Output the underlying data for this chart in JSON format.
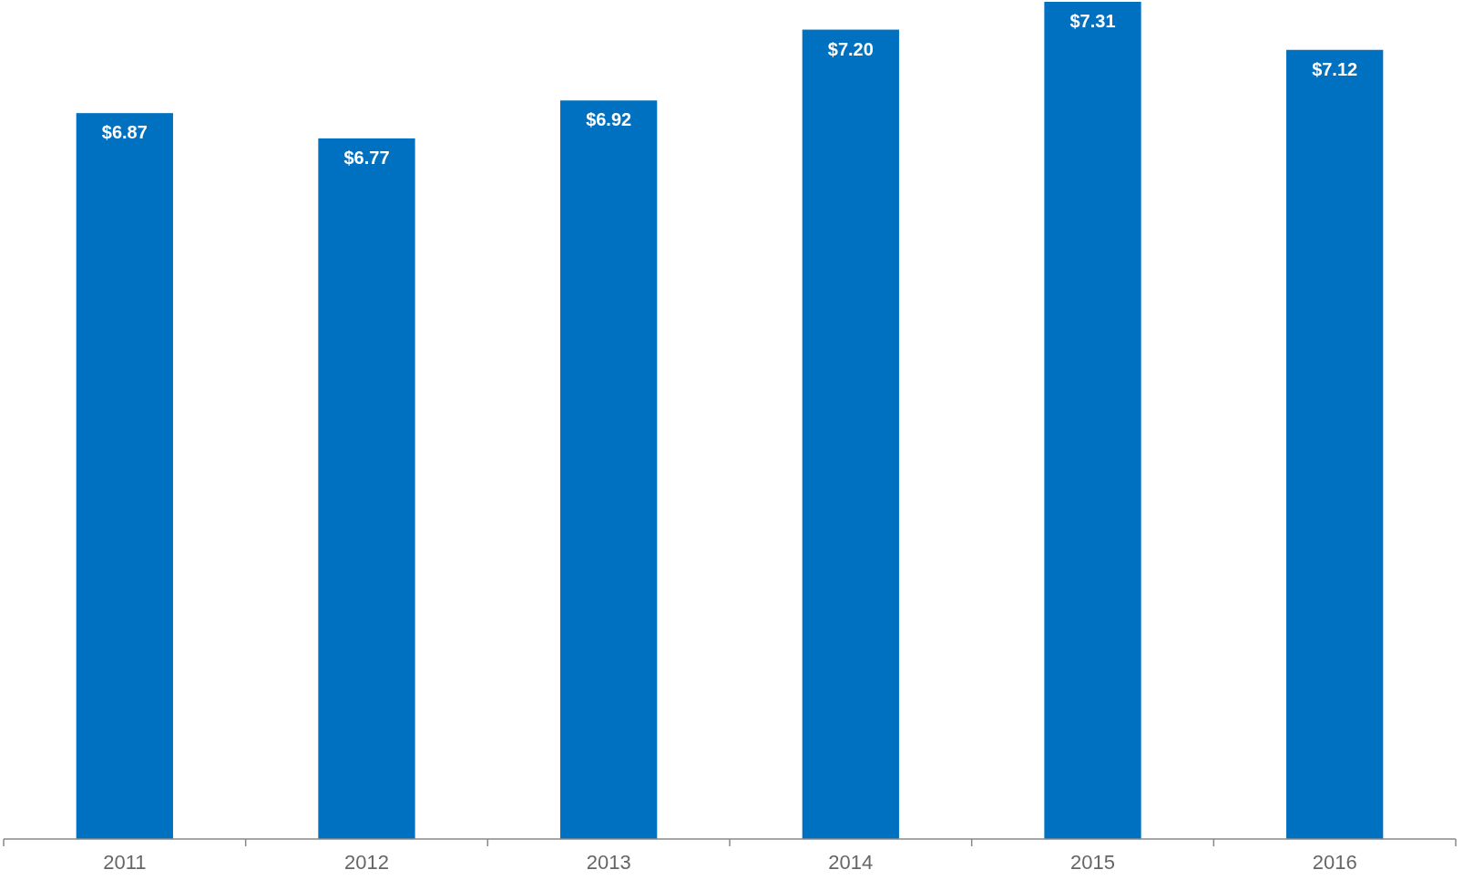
{
  "chart_data": {
    "type": "bar",
    "categories": [
      "2011",
      "2012",
      "2013",
      "2014",
      "2015",
      "2016"
    ],
    "values": [
      6.87,
      6.77,
      6.92,
      7.2,
      7.31,
      7.12
    ],
    "value_labels": [
      "$6.87",
      "$6.77",
      "$6.92",
      "$7.20",
      "$7.31",
      "$7.12"
    ],
    "color": "#0070c0",
    "ylim": [
      4,
      7.31
    ],
    "tick_labels": "x"
  }
}
